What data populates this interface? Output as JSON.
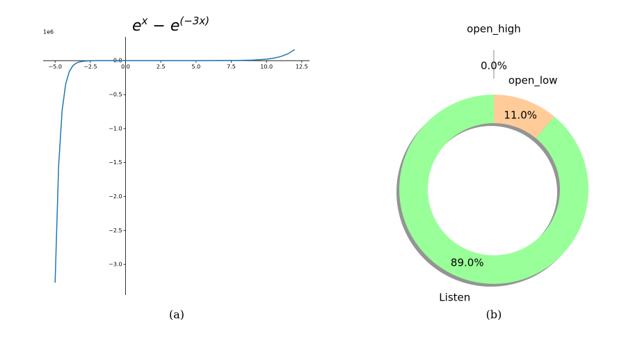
{
  "chart_data": [
    {
      "type": "line",
      "title": [
        "e",
        "x",
        " − e",
        "(−3x)"
      ],
      "offset_label": "1e6",
      "caption": "(a)",
      "x": [
        -5,
        -4.75,
        -4.5,
        -4.25,
        -4,
        -3.75,
        -3.5,
        -3.25,
        -3,
        -2.5,
        -2,
        0,
        5,
        8,
        9,
        10,
        10.5,
        11,
        11.5,
        12
      ],
      "series": [
        {
          "color": "#1f77b4",
          "values": [
            -3.269,
            -1.544,
            -0.729,
            -0.345,
            -0.163,
            -0.077,
            -0.036,
            -0.017,
            -0.008,
            -0.002,
            0.0,
            0.0,
            0.0,
            0.003,
            0.008,
            0.022,
            0.036,
            0.06,
            0.099,
            0.163
          ]
        }
      ],
      "xlim": [
        -5.85,
        13.05
      ],
      "ylim": [
        -3.45,
        0.35
      ],
      "xticks": [
        {
          "value": -5,
          "label": "−5.0"
        },
        {
          "value": -2.5,
          "label": "−2.5"
        },
        {
          "value": 0,
          "label": "0.0"
        },
        2.5,
        {
          "value": 5,
          "label": "5.0"
        },
        7.5,
        {
          "value": 10,
          "label": "10.0"
        },
        12.5
      ],
      "yticks": [
        {
          "value": 0,
          "label": "0.0"
        },
        {
          "value": -0.5,
          "label": "−0.5"
        },
        {
          "value": -1,
          "label": "−1.0"
        },
        {
          "value": -1.5,
          "label": "−1.5"
        },
        {
          "value": -2,
          "label": "−2.0"
        },
        {
          "value": -2.5,
          "label": "−2.5"
        },
        {
          "value": -3,
          "label": "−3.0"
        }
      ]
    },
    {
      "type": "pie",
      "caption": "(b)",
      "categories": [
        "open_high",
        "open_low",
        "Listen"
      ],
      "values": [
        0.0,
        11.0,
        89.0
      ],
      "value_labels": [
        "0.0%",
        "11.0%",
        "89.0%"
      ],
      "colors": [
        "#b0b0b0",
        "#ffcc99",
        "#99ff99"
      ],
      "explode": [
        0.47,
        0,
        0
      ],
      "shadow": true
    }
  ]
}
